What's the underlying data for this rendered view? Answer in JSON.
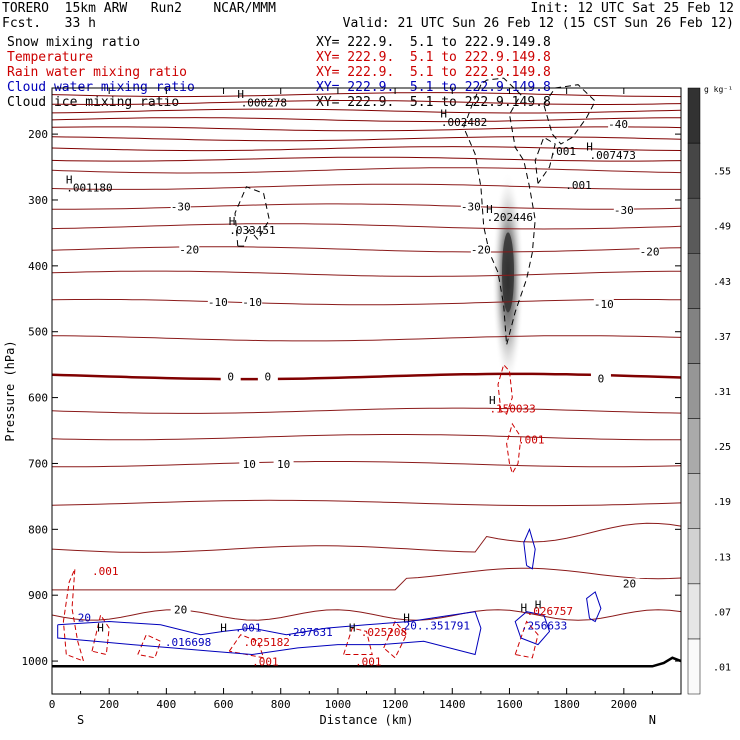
{
  "header": {
    "left_line1": "TORERO  15km ARW   Run2    NCAR/MMM",
    "left_line2": "Fcst.   33 h",
    "init": "Init: 12 UTC Sat 25 Feb 12",
    "valid": "Valid: 21 UTC Sun 26 Feb 12 (15 CST Sun 26 Feb 12)"
  },
  "fields": [
    {
      "label": "Snow mixing ratio",
      "xy": "XY= 222.9.  5.1 to 222.9.149.8",
      "color": "#000000"
    },
    {
      "label": "Temperature",
      "xy": "XY= 222.9.  5.1 to 222.9.149.8",
      "color": "#cc0000"
    },
    {
      "label": "Rain water mixing ratio",
      "xy": "XY= 222.9.  5.1 to 222.9.149.8",
      "color": "#cc0000"
    },
    {
      "label": "Cloud water mixing ratio",
      "xy": "XY= 222.9.  5.1 to 222.9.149.8",
      "color": "#0000bb"
    },
    {
      "label": "Cloud ice mixing ratio",
      "xy": "XY= 222.9.  5.1 to 222.9.149.8",
      "color": "#000000"
    }
  ],
  "chart_data": {
    "type": "cross-section",
    "xlabel": "Distance (km)",
    "ylabel": "Pressure (hPa)",
    "xlim": [
      0,
      2200
    ],
    "ylim": [
      1050,
      130
    ],
    "x_ticks": [
      0,
      200,
      400,
      600,
      800,
      1000,
      1200,
      1400,
      1600,
      1800,
      2000
    ],
    "y_ticks": [
      200,
      300,
      400,
      500,
      600,
      700,
      800,
      900,
      1000
    ],
    "x_end_labels": {
      "left": "S",
      "right": "N"
    },
    "colorbar": {
      "units": "g kg⁻¹",
      "levels": [
        ".01",
        ".07",
        ".13",
        ".19",
        ".25",
        ".31",
        ".37",
        ".43",
        ".49",
        ".55"
      ]
    },
    "temperature_isotherms": [
      -40,
      -30,
      -20,
      -10,
      0,
      10,
      20
    ],
    "temperature_labels": [
      {
        "text": "-40",
        "x": 1980,
        "p": 185
      },
      {
        "text": "-30",
        "x": 450,
        "p": 310
      },
      {
        "text": "-30",
        "x": 1465,
        "p": 310
      },
      {
        "text": "-30",
        "x": 2000,
        "p": 315
      },
      {
        "text": "-20",
        "x": 480,
        "p": 375
      },
      {
        "text": "-20",
        "x": 1500,
        "p": 375
      },
      {
        "text": "-20",
        "x": 2090,
        "p": 378
      },
      {
        "text": "-10",
        "x": 580,
        "p": 455
      },
      {
        "text": "-10",
        "x": 700,
        "p": 455
      },
      {
        "text": "-10",
        "x": 1930,
        "p": 458
      },
      {
        "text": "0",
        "x": 625,
        "p": 568
      },
      {
        "text": "0",
        "x": 755,
        "p": 568
      },
      {
        "text": "0",
        "x": 1920,
        "p": 571
      },
      {
        "text": "10",
        "x": 690,
        "p": 701
      },
      {
        "text": "10",
        "x": 810,
        "p": 701
      },
      {
        "text": "20",
        "x": 450,
        "p": 922
      },
      {
        "text": "20",
        "x": 2020,
        "p": 882
      }
    ],
    "maxima_labels": [
      {
        "text": ".000278",
        "x": 660,
        "p": 158,
        "color": "#000000"
      },
      {
        "text": ".002482",
        "x": 1360,
        "p": 188,
        "color": "#000000"
      },
      {
        "text": ".001",
        "x": 1740,
        "p": 232,
        "color": "#000000"
      },
      {
        "text": ".007473",
        "x": 1880,
        "p": 238,
        "color": "#000000"
      },
      {
        "text": ".001",
        "x": 1795,
        "p": 283,
        "color": "#000000"
      },
      {
        "text": ".001180",
        "x": 50,
        "p": 287,
        "color": "#000000"
      },
      {
        "text": ".033451",
        "x": 620,
        "p": 352,
        "color": "#000000"
      },
      {
        "text": ".202446",
        "x": 1520,
        "p": 332,
        "color": "#000000"
      },
      {
        "text": ".150033",
        "x": 1530,
        "p": 623,
        "color": "#cc0000"
      },
      {
        "text": ".001",
        "x": 1630,
        "p": 670,
        "color": "#cc0000"
      },
      {
        "text": ".001",
        "x": 140,
        "p": 869,
        "color": "#cc0000"
      },
      {
        "text": ".001",
        "x": 640,
        "p": 955,
        "color": "#0000bb"
      },
      {
        "text": ".297631",
        "x": 820,
        "p": 962,
        "color": "#0000bb"
      },
      {
        "text": ".351791",
        "x": 1300,
        "p": 952,
        "color": "#0000bb"
      },
      {
        "text": ".256633",
        "x": 1640,
        "p": 952,
        "color": "#0000bb"
      },
      {
        "text": ".026757",
        "x": 1660,
        "p": 930,
        "color": "#cc0000"
      },
      {
        "text": ".016698",
        "x": 395,
        "p": 977,
        "color": "#0000bb"
      },
      {
        "text": ".025182",
        "x": 670,
        "p": 977,
        "color": "#cc0000"
      },
      {
        "text": ".025208",
        "x": 1080,
        "p": 962,
        "color": "#cc0000"
      },
      {
        "text": ".001",
        "x": 700,
        "p": 1007,
        "color": "#cc0000"
      },
      {
        "text": ".001",
        "x": 1060,
        "p": 1007,
        "color": "#cc0000"
      },
      {
        "text": "20.",
        "x": 1230,
        "p": 952,
        "color": "#0000bb"
      },
      {
        "text": "20",
        "x": 90,
        "p": 940,
        "color": "#0000bb"
      }
    ],
    "snow_max": {
      "x": 1595,
      "p": 420,
      "value": 0.55
    }
  }
}
